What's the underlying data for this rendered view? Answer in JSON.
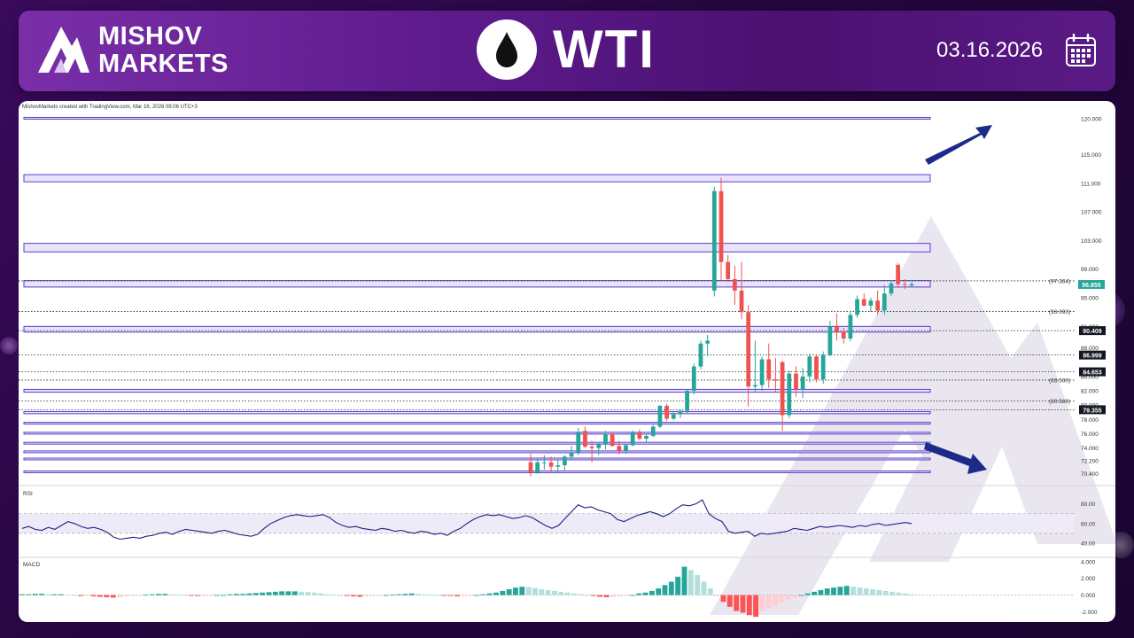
{
  "header": {
    "brand_line1": "MISHOV",
    "brand_line2": "MARKETS",
    "title": "WTI",
    "date": "03.16.2026",
    "icons": [
      "mountain-logo-icon",
      "oil-drop-icon",
      "calendar-icon"
    ]
  },
  "credit": "MishovMarkets created with TradingView.com, Mar 16, 2026 09:06 UTC+3",
  "colors": {
    "up": "#26a69a",
    "down": "#ef5350",
    "zone_fill": "#e9e3fb",
    "zone_border": "#5b3fc8",
    "arrow": "#1c2a8a",
    "rsi_line": "#1a237e",
    "header_bg": "#5d1a8c"
  },
  "chart_data": [
    {
      "type": "candlestick",
      "title": "WTI",
      "ylim": [
        69.5,
        121
      ],
      "y_ticks": [
        "120.000",
        "115.000",
        "111.000",
        "107.000",
        "103.000",
        "99.000",
        "95.000",
        "91.000",
        "88.000",
        "84.000",
        "82.000",
        "80.000",
        "78.000",
        "76.000",
        "74.000",
        "72.200",
        "70.400"
      ],
      "last_price": "96.855",
      "candles": [
        {
          "o": 72.0,
          "h": 73.2,
          "l": 70.0,
          "c": 70.6
        },
        {
          "o": 70.6,
          "h": 72.5,
          "l": 70.4,
          "c": 72.0
        },
        {
          "o": 72.0,
          "h": 73.0,
          "l": 71.0,
          "c": 72.0
        },
        {
          "o": 72.0,
          "h": 72.8,
          "l": 70.6,
          "c": 71.4
        },
        {
          "o": 71.4,
          "h": 72.3,
          "l": 70.6,
          "c": 71.6
        },
        {
          "o": 71.6,
          "h": 73.0,
          "l": 70.8,
          "c": 72.8
        },
        {
          "o": 72.8,
          "h": 74.3,
          "l": 72.4,
          "c": 73.4
        },
        {
          "o": 73.4,
          "h": 76.8,
          "l": 73.0,
          "c": 76.2
        },
        {
          "o": 76.4,
          "h": 77.0,
          "l": 74.0,
          "c": 74.2
        },
        {
          "o": 74.2,
          "h": 75.0,
          "l": 72.0,
          "c": 74.0
        },
        {
          "o": 74.0,
          "h": 74.8,
          "l": 73.0,
          "c": 74.5
        },
        {
          "o": 74.5,
          "h": 76.4,
          "l": 73.8,
          "c": 76.0
        },
        {
          "o": 76.0,
          "h": 76.3,
          "l": 74.2,
          "c": 74.3
        },
        {
          "o": 74.3,
          "h": 75.0,
          "l": 73.1,
          "c": 73.6
        },
        {
          "o": 73.6,
          "h": 74.6,
          "l": 73.2,
          "c": 74.4
        },
        {
          "o": 74.4,
          "h": 76.5,
          "l": 74.2,
          "c": 76.2
        },
        {
          "o": 76.2,
          "h": 76.6,
          "l": 75.1,
          "c": 75.3
        },
        {
          "o": 75.3,
          "h": 76.0,
          "l": 74.8,
          "c": 75.7
        },
        {
          "o": 75.7,
          "h": 77.2,
          "l": 75.5,
          "c": 77.0
        },
        {
          "o": 77.0,
          "h": 80.0,
          "l": 76.8,
          "c": 79.9
        },
        {
          "o": 79.9,
          "h": 80.2,
          "l": 77.8,
          "c": 78.1
        },
        {
          "o": 78.1,
          "h": 79.0,
          "l": 77.9,
          "c": 78.7
        },
        {
          "o": 78.7,
          "h": 79.4,
          "l": 78.2,
          "c": 79.2
        },
        {
          "o": 79.2,
          "h": 82.2,
          "l": 78.8,
          "c": 82.0
        },
        {
          "o": 82.0,
          "h": 85.8,
          "l": 81.5,
          "c": 85.4
        },
        {
          "o": 85.4,
          "h": 89.0,
          "l": 85.0,
          "c": 88.6
        },
        {
          "o": 88.6,
          "h": 89.8,
          "l": 86.8,
          "c": 89.0
        },
        {
          "o": 96.0,
          "h": 110.5,
          "l": 95.2,
          "c": 109.9
        },
        {
          "o": 109.9,
          "h": 111.8,
          "l": 97.5,
          "c": 100.0
        },
        {
          "o": 100.0,
          "h": 101.0,
          "l": 97.2,
          "c": 97.6
        },
        {
          "o": 97.6,
          "h": 99.5,
          "l": 94.0,
          "c": 96.0
        },
        {
          "o": 96.0,
          "h": 100.0,
          "l": 92.0,
          "c": 93.0
        },
        {
          "o": 93.0,
          "h": 94.0,
          "l": 79.8,
          "c": 82.6
        },
        {
          "o": 82.6,
          "h": 89.0,
          "l": 81.8,
          "c": 82.8
        },
        {
          "o": 82.8,
          "h": 86.8,
          "l": 82.0,
          "c": 86.4
        },
        {
          "o": 86.4,
          "h": 88.6,
          "l": 82.4,
          "c": 83.6
        },
        {
          "o": 83.6,
          "h": 86.6,
          "l": 81.8,
          "c": 83.4
        },
        {
          "o": 86.0,
          "h": 86.2,
          "l": 76.4,
          "c": 78.6
        },
        {
          "o": 78.6,
          "h": 84.8,
          "l": 78.2,
          "c": 84.4
        },
        {
          "o": 84.4,
          "h": 85.4,
          "l": 81.2,
          "c": 82.2
        },
        {
          "o": 82.2,
          "h": 85.2,
          "l": 81.0,
          "c": 84.0
        },
        {
          "o": 84.0,
          "h": 87.2,
          "l": 83.2,
          "c": 86.8
        },
        {
          "o": 86.8,
          "h": 87.0,
          "l": 83.2,
          "c": 83.6
        },
        {
          "o": 83.6,
          "h": 87.5,
          "l": 83.0,
          "c": 87.0
        },
        {
          "o": 87.0,
          "h": 91.8,
          "l": 86.8,
          "c": 91.0
        },
        {
          "o": 91.0,
          "h": 92.8,
          "l": 89.0,
          "c": 90.2
        },
        {
          "o": 90.2,
          "h": 90.8,
          "l": 88.6,
          "c": 89.3
        },
        {
          "o": 89.3,
          "h": 93.2,
          "l": 88.9,
          "c": 92.6
        },
        {
          "o": 92.6,
          "h": 95.3,
          "l": 92.2,
          "c": 94.8
        },
        {
          "o": 94.8,
          "h": 95.6,
          "l": 93.8,
          "c": 93.9
        },
        {
          "o": 93.9,
          "h": 95.0,
          "l": 93.0,
          "c": 94.6
        },
        {
          "o": 94.6,
          "h": 96.0,
          "l": 92.6,
          "c": 93.2
        },
        {
          "o": 93.2,
          "h": 96.8,
          "l": 92.6,
          "c": 95.6
        },
        {
          "o": 95.6,
          "h": 97.4,
          "l": 95.2,
          "c": 97.0
        },
        {
          "o": 99.6,
          "h": 99.8,
          "l": 96.4,
          "c": 96.9
        },
        {
          "o": 96.9,
          "h": 97.6,
          "l": 96.2,
          "c": 96.8
        },
        {
          "o": 96.7,
          "h": 97.2,
          "l": 96.5,
          "c": 96.9
        }
      ],
      "zones": [
        [
          120.0,
          120.2
        ],
        [
          111.2,
          112.2
        ],
        [
          101.4,
          102.6
        ],
        [
          96.5,
          97.4
        ],
        [
          90.2,
          91.0
        ],
        [
          81.8,
          82.2
        ],
        [
          78.8,
          79.1
        ],
        [
          77.4,
          77.6
        ],
        [
          76.0,
          76.2
        ],
        [
          74.6,
          74.8
        ],
        [
          73.4,
          73.6
        ],
        [
          72.4,
          72.6
        ],
        [
          70.6,
          70.8
        ]
      ],
      "levels": [
        {
          "value": 97.364,
          "label": "(97.364)",
          "style": "text"
        },
        {
          "value": 93.093,
          "label": "(93.093)",
          "style": "text"
        },
        {
          "value": 90.409,
          "label": "90.409",
          "style": "badge"
        },
        {
          "value": 86.999,
          "label": "86.999",
          "style": "badge"
        },
        {
          "value": 84.653,
          "label": "84.653",
          "style": "badge"
        },
        {
          "value": 83.5,
          "label": "(83.500)",
          "style": "text"
        },
        {
          "value": 80.569,
          "label": "(80.569)",
          "style": "text"
        },
        {
          "value": 79.355,
          "label": "79.355",
          "style": "badge"
        }
      ],
      "arrows": [
        "up-right",
        "down-right"
      ]
    },
    {
      "type": "line",
      "title": "RSI",
      "ylim": [
        30,
        95
      ],
      "y_ticks": [
        "80.00",
        "60.00",
        "40.00"
      ],
      "band": [
        50,
        70
      ],
      "values": [
        55,
        57,
        54,
        53,
        56,
        54,
        58,
        62,
        60,
        57,
        55,
        56,
        54,
        51,
        46,
        44,
        45,
        46,
        45,
        47,
        48,
        50,
        51,
        49,
        52,
        54,
        53,
        52,
        51,
        50,
        52,
        53,
        51,
        49,
        48,
        47,
        49,
        55,
        60,
        63,
        66,
        68,
        69,
        68,
        67,
        68,
        69,
        66,
        61,
        58,
        56,
        57,
        55,
        54,
        53,
        55,
        54,
        52,
        53,
        51,
        50,
        52,
        51,
        49,
        50,
        48,
        52,
        55,
        60,
        64,
        67,
        69,
        68,
        69,
        67,
        65,
        66,
        68,
        66,
        62,
        58,
        55,
        58,
        65,
        72,
        79,
        76,
        77,
        74,
        72,
        70,
        64,
        62,
        65,
        68,
        70,
        72,
        70,
        67,
        70,
        75,
        79,
        78,
        80,
        84,
        70,
        65,
        62,
        52,
        50,
        51,
        52,
        47,
        50,
        49,
        50,
        51,
        52,
        55,
        54,
        53,
        55,
        57,
        56,
        57,
        58,
        57,
        56,
        58,
        57,
        59,
        60,
        58,
        59,
        60,
        61,
        60
      ]
    },
    {
      "type": "bar",
      "title": "MACD",
      "ylim": [
        -2.8,
        4.2
      ],
      "y_ticks": [
        "4.000",
        "2.000",
        "0.000",
        "-2.000"
      ],
      "values": [
        0.1,
        0.1,
        0.15,
        0.15,
        0.1,
        0.1,
        0.1,
        0.05,
        0.0,
        -0.1,
        -0.1,
        -0.15,
        -0.2,
        -0.25,
        -0.3,
        -0.25,
        -0.15,
        -0.1,
        -0.05,
        0.05,
        0.1,
        0.15,
        0.15,
        0.1,
        0.05,
        0.0,
        -0.05,
        -0.1,
        -0.1,
        -0.05,
        0.0,
        0.0,
        0.1,
        0.15,
        0.15,
        0.2,
        0.25,
        0.3,
        0.35,
        0.4,
        0.45,
        0.45,
        0.45,
        0.4,
        0.35,
        0.3,
        0.2,
        0.1,
        0.05,
        0.0,
        -0.1,
        -0.15,
        -0.2,
        -0.15,
        -0.1,
        -0.05,
        0.0,
        0.05,
        0.1,
        0.15,
        0.2,
        0.15,
        0.1,
        0.05,
        0.0,
        -0.05,
        -0.1,
        -0.15,
        -0.1,
        -0.05,
        0.0,
        0.1,
        0.2,
        0.3,
        0.5,
        0.7,
        0.9,
        1.0,
        0.95,
        0.85,
        0.7,
        0.6,
        0.5,
        0.4,
        0.3,
        0.2,
        0.1,
        0.0,
        -0.1,
        -0.2,
        -0.25,
        -0.2,
        -0.15,
        -0.1,
        0.0,
        0.2,
        0.3,
        0.5,
        0.8,
        1.2,
        1.6,
        2.2,
        3.4,
        3.0,
        2.4,
        1.6,
        0.8,
        0.0,
        -0.8,
        -1.4,
        -1.9,
        -2.1,
        -2.4,
        -2.6,
        -1.9,
        -1.6,
        -1.2,
        -0.9,
        -0.6,
        -0.3,
        0.0,
        0.2,
        0.4,
        0.6,
        0.8,
        0.9,
        1.0,
        1.1,
        1.0,
        0.9,
        0.8,
        0.7,
        0.6,
        0.5,
        0.4,
        0.3,
        0.2,
        0.1
      ]
    }
  ]
}
